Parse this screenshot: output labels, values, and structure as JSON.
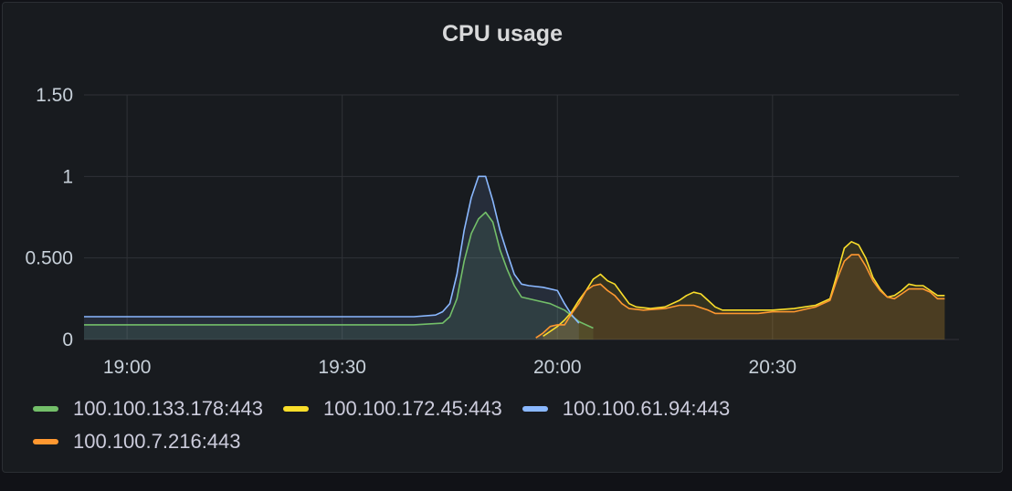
{
  "panel": {
    "title": "CPU usage"
  },
  "chart_data": {
    "type": "area",
    "title": "CPU usage",
    "xlabel": "",
    "ylabel": "",
    "x_ticks": [
      "19:00",
      "19:30",
      "20:00",
      "20:30"
    ],
    "x_tick_minutes": [
      1140,
      1170,
      1200,
      1230
    ],
    "xlim_minutes": [
      1134,
      1256
    ],
    "y_ticks": [
      0,
      0.5,
      1,
      1.5
    ],
    "y_tick_labels": [
      "0",
      "0.500",
      "1",
      "1.50"
    ],
    "ylim": [
      0,
      1.5
    ],
    "grid": true,
    "legend_position": "bottom",
    "series": [
      {
        "name": "100.100.133.178:443",
        "color": "#73bf69",
        "points": [
          [
            "18:54",
            0.09
          ],
          [
            "19:00",
            0.09
          ],
          [
            "19:10",
            0.09
          ],
          [
            "19:20",
            0.09
          ],
          [
            "19:30",
            0.09
          ],
          [
            "19:40",
            0.09
          ],
          [
            "19:44",
            0.1
          ],
          [
            "19:45",
            0.14
          ],
          [
            "19:46",
            0.25
          ],
          [
            "19:47",
            0.48
          ],
          [
            "19:48",
            0.65
          ],
          [
            "19:49",
            0.74
          ],
          [
            "19:50",
            0.78
          ],
          [
            "19:51",
            0.72
          ],
          [
            "19:52",
            0.55
          ],
          [
            "19:53",
            0.43
          ],
          [
            "19:54",
            0.33
          ],
          [
            "19:55",
            0.26
          ],
          [
            "19:57",
            0.24
          ],
          [
            "19:59",
            0.22
          ],
          [
            "20:01",
            0.18
          ],
          [
            "20:03",
            0.11
          ],
          [
            "20:05",
            0.07
          ]
        ]
      },
      {
        "name": "100.100.172.45:443",
        "color": "#fade2a",
        "points": [
          [
            "19:58",
            0.02
          ],
          [
            "19:59",
            0.05
          ],
          [
            "20:00",
            0.08
          ],
          [
            "20:01",
            0.12
          ],
          [
            "20:02",
            0.17
          ],
          [
            "20:03",
            0.24
          ],
          [
            "20:04",
            0.3
          ],
          [
            "20:05",
            0.37
          ],
          [
            "20:06",
            0.4
          ],
          [
            "20:07",
            0.36
          ],
          [
            "20:08",
            0.34
          ],
          [
            "20:09",
            0.28
          ],
          [
            "20:10",
            0.22
          ],
          [
            "20:11",
            0.2
          ],
          [
            "20:13",
            0.19
          ],
          [
            "20:15",
            0.2
          ],
          [
            "20:17",
            0.24
          ],
          [
            "20:18",
            0.27
          ],
          [
            "20:19",
            0.29
          ],
          [
            "20:20",
            0.28
          ],
          [
            "20:21",
            0.24
          ],
          [
            "20:22",
            0.2
          ],
          [
            "20:23",
            0.18
          ],
          [
            "20:25",
            0.18
          ],
          [
            "20:27",
            0.18
          ],
          [
            "20:30",
            0.18
          ],
          [
            "20:33",
            0.19
          ],
          [
            "20:36",
            0.21
          ],
          [
            "20:38",
            0.25
          ],
          [
            "20:39",
            0.4
          ],
          [
            "20:40",
            0.56
          ],
          [
            "20:41",
            0.6
          ],
          [
            "20:42",
            0.58
          ],
          [
            "20:43",
            0.5
          ],
          [
            "20:44",
            0.38
          ],
          [
            "20:45",
            0.31
          ],
          [
            "20:46",
            0.26
          ],
          [
            "20:47",
            0.27
          ],
          [
            "20:48",
            0.3
          ],
          [
            "20:49",
            0.34
          ],
          [
            "20:50",
            0.33
          ],
          [
            "20:51",
            0.33
          ],
          [
            "20:52",
            0.3
          ],
          [
            "20:53",
            0.27
          ],
          [
            "20:54",
            0.27
          ]
        ]
      },
      {
        "name": "100.100.61.94:443",
        "color": "#8ab8ff",
        "points": [
          [
            "18:54",
            0.14
          ],
          [
            "19:00",
            0.14
          ],
          [
            "19:10",
            0.14
          ],
          [
            "19:20",
            0.14
          ],
          [
            "19:30",
            0.14
          ],
          [
            "19:40",
            0.14
          ],
          [
            "19:43",
            0.15
          ],
          [
            "19:44",
            0.17
          ],
          [
            "19:45",
            0.22
          ],
          [
            "19:46",
            0.4
          ],
          [
            "19:47",
            0.67
          ],
          [
            "19:48",
            0.87
          ],
          [
            "19:49",
            1.0
          ],
          [
            "19:50",
            1.0
          ],
          [
            "19:51",
            0.85
          ],
          [
            "19:52",
            0.67
          ],
          [
            "19:53",
            0.53
          ],
          [
            "19:54",
            0.4
          ],
          [
            "19:55",
            0.34
          ],
          [
            "19:56",
            0.33
          ],
          [
            "19:58",
            0.32
          ],
          [
            "20:00",
            0.3
          ],
          [
            "20:01",
            0.22
          ],
          [
            "20:02",
            0.15
          ],
          [
            "20:03",
            0.1
          ]
        ]
      },
      {
        "name": "100.100.7.216:443",
        "color": "#ff9830",
        "points": [
          [
            "19:57",
            0.01
          ],
          [
            "19:58",
            0.04
          ],
          [
            "19:59",
            0.08
          ],
          [
            "20:00",
            0.09
          ],
          [
            "20:01",
            0.09
          ],
          [
            "20:02",
            0.16
          ],
          [
            "20:03",
            0.22
          ],
          [
            "20:04",
            0.3
          ],
          [
            "20:05",
            0.33
          ],
          [
            "20:06",
            0.34
          ],
          [
            "20:07",
            0.3
          ],
          [
            "20:08",
            0.27
          ],
          [
            "20:09",
            0.22
          ],
          [
            "20:10",
            0.19
          ],
          [
            "20:12",
            0.18
          ],
          [
            "20:15",
            0.19
          ],
          [
            "20:17",
            0.21
          ],
          [
            "20:19",
            0.21
          ],
          [
            "20:21",
            0.18
          ],
          [
            "20:22",
            0.16
          ],
          [
            "20:25",
            0.16
          ],
          [
            "20:28",
            0.16
          ],
          [
            "20:30",
            0.17
          ],
          [
            "20:33",
            0.17
          ],
          [
            "20:36",
            0.2
          ],
          [
            "20:38",
            0.24
          ],
          [
            "20:39",
            0.37
          ],
          [
            "20:40",
            0.48
          ],
          [
            "20:41",
            0.52
          ],
          [
            "20:42",
            0.52
          ],
          [
            "20:43",
            0.45
          ],
          [
            "20:44",
            0.36
          ],
          [
            "20:45",
            0.3
          ],
          [
            "20:46",
            0.26
          ],
          [
            "20:47",
            0.25
          ],
          [
            "20:48",
            0.28
          ],
          [
            "20:49",
            0.31
          ],
          [
            "20:50",
            0.31
          ],
          [
            "20:51",
            0.31
          ],
          [
            "20:52",
            0.29
          ],
          [
            "20:53",
            0.25
          ],
          [
            "20:54",
            0.25
          ]
        ]
      }
    ]
  },
  "legend": {
    "rows": [
      [
        0,
        1,
        2
      ],
      [
        3
      ]
    ]
  }
}
